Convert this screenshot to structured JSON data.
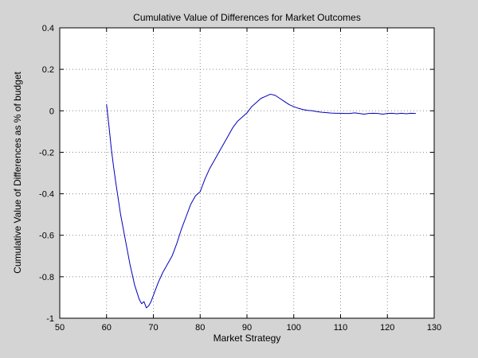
{
  "chart_data": {
    "type": "line",
    "title": "Cumulative Value of Differences for Market Outcomes",
    "xlabel": "Market Strategy",
    "ylabel": "Cumulative Value of Differences as % of budget",
    "xlim": [
      50,
      130
    ],
    "ylim": [
      -1,
      0.4
    ],
    "xticks": [
      50,
      60,
      70,
      80,
      90,
      100,
      110,
      120,
      130
    ],
    "yticks": [
      -1,
      -0.8,
      -0.6,
      -0.4,
      -0.2,
      0,
      0.2,
      0.4
    ],
    "yticklabels": [
      "-1",
      "-0.8",
      "-0.6",
      "-0.4",
      "-0.2",
      "0",
      "0.2",
      "0.4"
    ],
    "grid": true,
    "legend_position": "none",
    "line_color": "#0000bb",
    "plot_bg": "#ffffff",
    "figure_bg": "#d4d4d4",
    "series": [
      {
        "name": "cumulative-value-of-differences",
        "points": [
          [
            60,
            0.03
          ],
          [
            60.5,
            -0.07
          ],
          [
            61,
            -0.18
          ],
          [
            61.5,
            -0.27
          ],
          [
            62,
            -0.35
          ],
          [
            63,
            -0.5
          ],
          [
            64,
            -0.62
          ],
          [
            65,
            -0.74
          ],
          [
            66,
            -0.84
          ],
          [
            67,
            -0.91
          ],
          [
            67.5,
            -0.93
          ],
          [
            68,
            -0.92
          ],
          [
            68.5,
            -0.95
          ],
          [
            69,
            -0.94
          ],
          [
            69.5,
            -0.92
          ],
          [
            70,
            -0.89
          ],
          [
            71,
            -0.83
          ],
          [
            72,
            -0.78
          ],
          [
            73,
            -0.74
          ],
          [
            74,
            -0.7
          ],
          [
            75,
            -0.64
          ],
          [
            76,
            -0.57
          ],
          [
            77,
            -0.51
          ],
          [
            78,
            -0.45
          ],
          [
            79,
            -0.41
          ],
          [
            80,
            -0.39
          ],
          [
            81,
            -0.33
          ],
          [
            82,
            -0.28
          ],
          [
            83,
            -0.24
          ],
          [
            84,
            -0.2
          ],
          [
            85,
            -0.16
          ],
          [
            86,
            -0.12
          ],
          [
            87,
            -0.08
          ],
          [
            88,
            -0.05
          ],
          [
            89,
            -0.03
          ],
          [
            90,
            -0.01
          ],
          [
            91,
            0.02
          ],
          [
            92,
            0.04
          ],
          [
            93,
            0.06
          ],
          [
            94,
            0.07
          ],
          [
            95,
            0.08
          ],
          [
            96,
            0.075
          ],
          [
            97,
            0.06
          ],
          [
            98,
            0.045
          ],
          [
            99,
            0.03
          ],
          [
            100,
            0.02
          ],
          [
            101,
            0.012
          ],
          [
            102,
            0.006
          ],
          [
            103,
            0.002
          ],
          [
            104,
            0
          ],
          [
            105,
            -0.004
          ],
          [
            106,
            -0.007
          ],
          [
            107,
            -0.009
          ],
          [
            108,
            -0.011
          ],
          [
            109,
            -0.012
          ],
          [
            110,
            -0.012
          ],
          [
            111,
            -0.013
          ],
          [
            112,
            -0.013
          ],
          [
            113,
            -0.01
          ],
          [
            114,
            -0.013
          ],
          [
            115,
            -0.016
          ],
          [
            116,
            -0.013
          ],
          [
            117,
            -0.012
          ],
          [
            118,
            -0.013
          ],
          [
            119,
            -0.016
          ],
          [
            120,
            -0.013
          ],
          [
            121,
            -0.012
          ],
          [
            122,
            -0.014
          ],
          [
            123,
            -0.012
          ],
          [
            124,
            -0.014
          ],
          [
            125,
            -0.012
          ],
          [
            126,
            -0.013
          ]
        ]
      }
    ]
  }
}
